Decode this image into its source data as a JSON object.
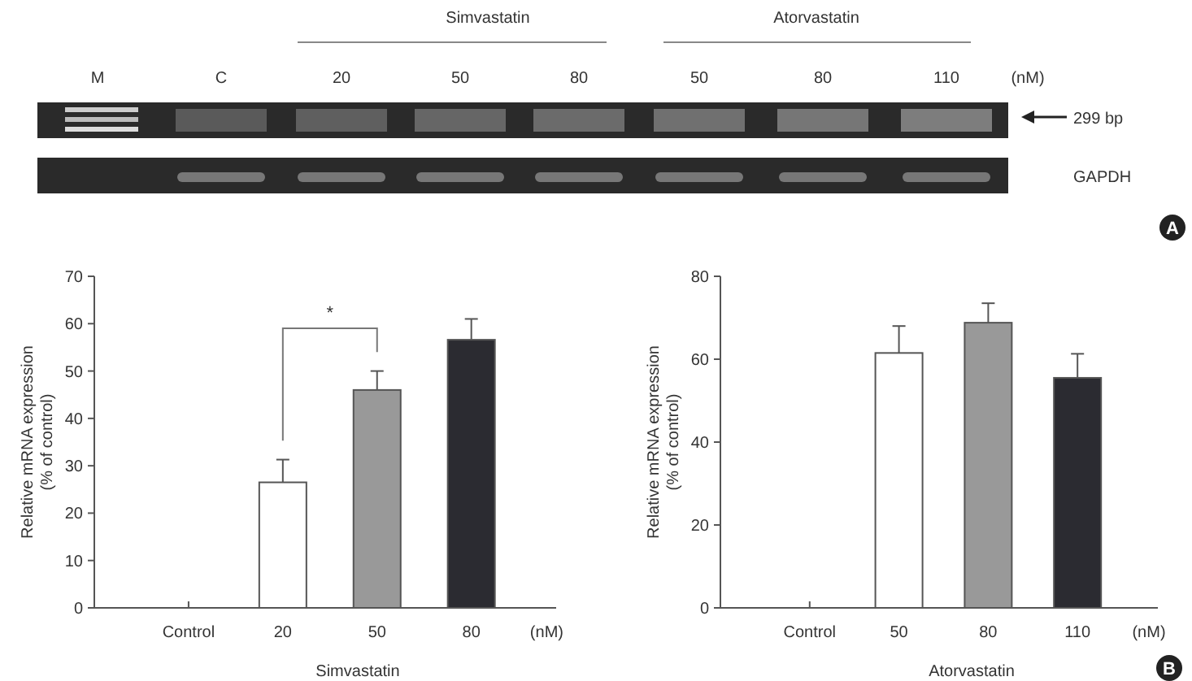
{
  "chart_data": [
    {
      "type": "other",
      "annotations": [
        "M",
        "C",
        "20",
        "50",
        "80",
        "50",
        "80",
        "110",
        "(nM)",
        "Simvastatin",
        "Atorvastatin",
        "299 bp",
        "GAPDH",
        "A"
      ]
    },
    {
      "type": "bar",
      "categories": [
        "Control",
        "20",
        "50",
        "80"
      ],
      "values": [
        null,
        26.5,
        46,
        56.6
      ],
      "errors": [
        null,
        4.8,
        4,
        4.4
      ],
      "colors": [
        null,
        "#ffffff",
        "#999999",
        "#2b2b31"
      ],
      "xlabel": "Simvastatin",
      "ylabel": "Relative mRNA expression\n(% of control)",
      "ylim": [
        0,
        70
      ],
      "yticks": [
        0,
        10,
        20,
        30,
        40,
        50,
        60,
        70
      ],
      "annotations": [
        "(nM)",
        "*"
      ]
    },
    {
      "type": "bar",
      "categories": [
        "Control",
        "50",
        "80",
        "110"
      ],
      "values": [
        null,
        61.5,
        68.8,
        55.5
      ],
      "errors": [
        null,
        6.5,
        4.7,
        5.8
      ],
      "colors": [
        null,
        "#ffffff",
        "#999999",
        "#2b2b31"
      ],
      "xlabel": "Atorvastatin",
      "ylabel": "Relative mRNA expression\n(% of control)",
      "ylim": [
        0,
        80
      ],
      "yticks": [
        0,
        20,
        40,
        60,
        80
      ],
      "annotations": [
        "(nM)",
        "B"
      ]
    }
  ]
}
